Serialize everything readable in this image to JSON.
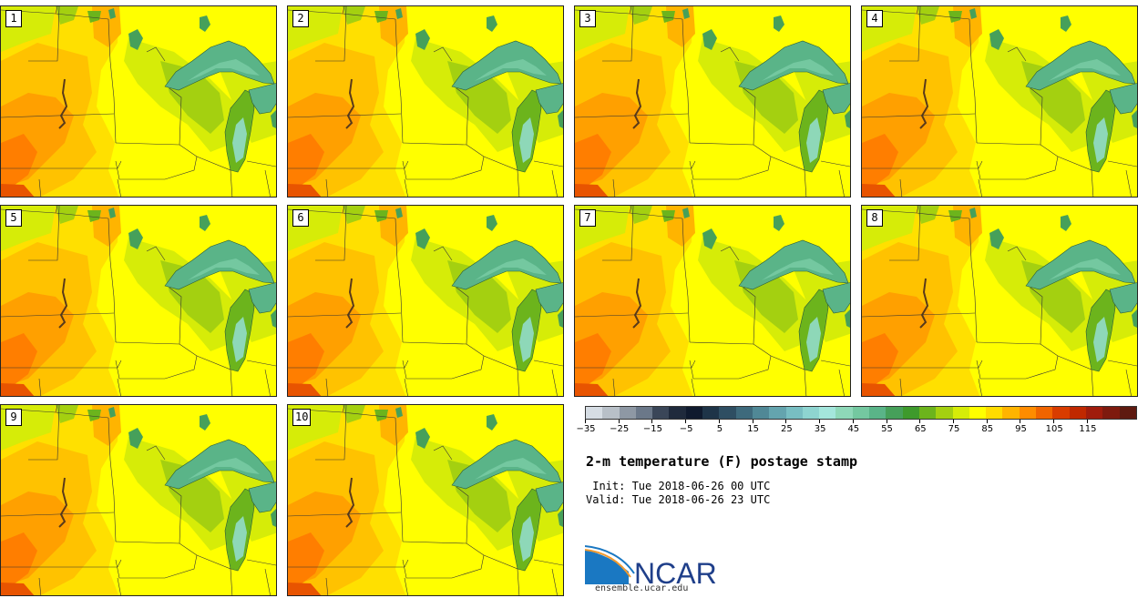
{
  "panels": [
    "1",
    "2",
    "3",
    "4",
    "5",
    "6",
    "7",
    "8",
    "9",
    "10"
  ],
  "colorbar": {
    "colors": [
      "#d6dde4",
      "#b8c0c8",
      "#8e98a4",
      "#6b7889",
      "#3a4658",
      "#1f2a3c",
      "#0f1a2e",
      "#1e3448",
      "#2e4e62",
      "#3e6a7c",
      "#508896",
      "#64a4ae",
      "#78bec2",
      "#8ed4d0",
      "#a4e6dc",
      "#8ed8b8",
      "#74c8a0",
      "#5ab488",
      "#46a05a",
      "#3e9a2c",
      "#6cb41c",
      "#a4d010",
      "#d6ec08",
      "#ffff00",
      "#ffdc00",
      "#ffb400",
      "#ff8c00",
      "#f06400",
      "#d83c00",
      "#c02800",
      "#a01c0c",
      "#7e1a0e",
      "#5e1a10"
    ],
    "tick_labels": [
      "−35",
      "−25",
      "−15",
      "−5",
      "5",
      "15",
      "25",
      "35",
      "45",
      "55",
      "65",
      "75",
      "85",
      "95",
      "105",
      "115"
    ]
  },
  "title": "2-m temperature (F) postage stamp",
  "init": " Init: Tue 2018-06-26 00 UTC",
  "valid": "Valid: Tue 2018-06-26 23 UTC",
  "logo": {
    "text": "NCAR",
    "url": "ensemble.ucar.edu"
  }
}
